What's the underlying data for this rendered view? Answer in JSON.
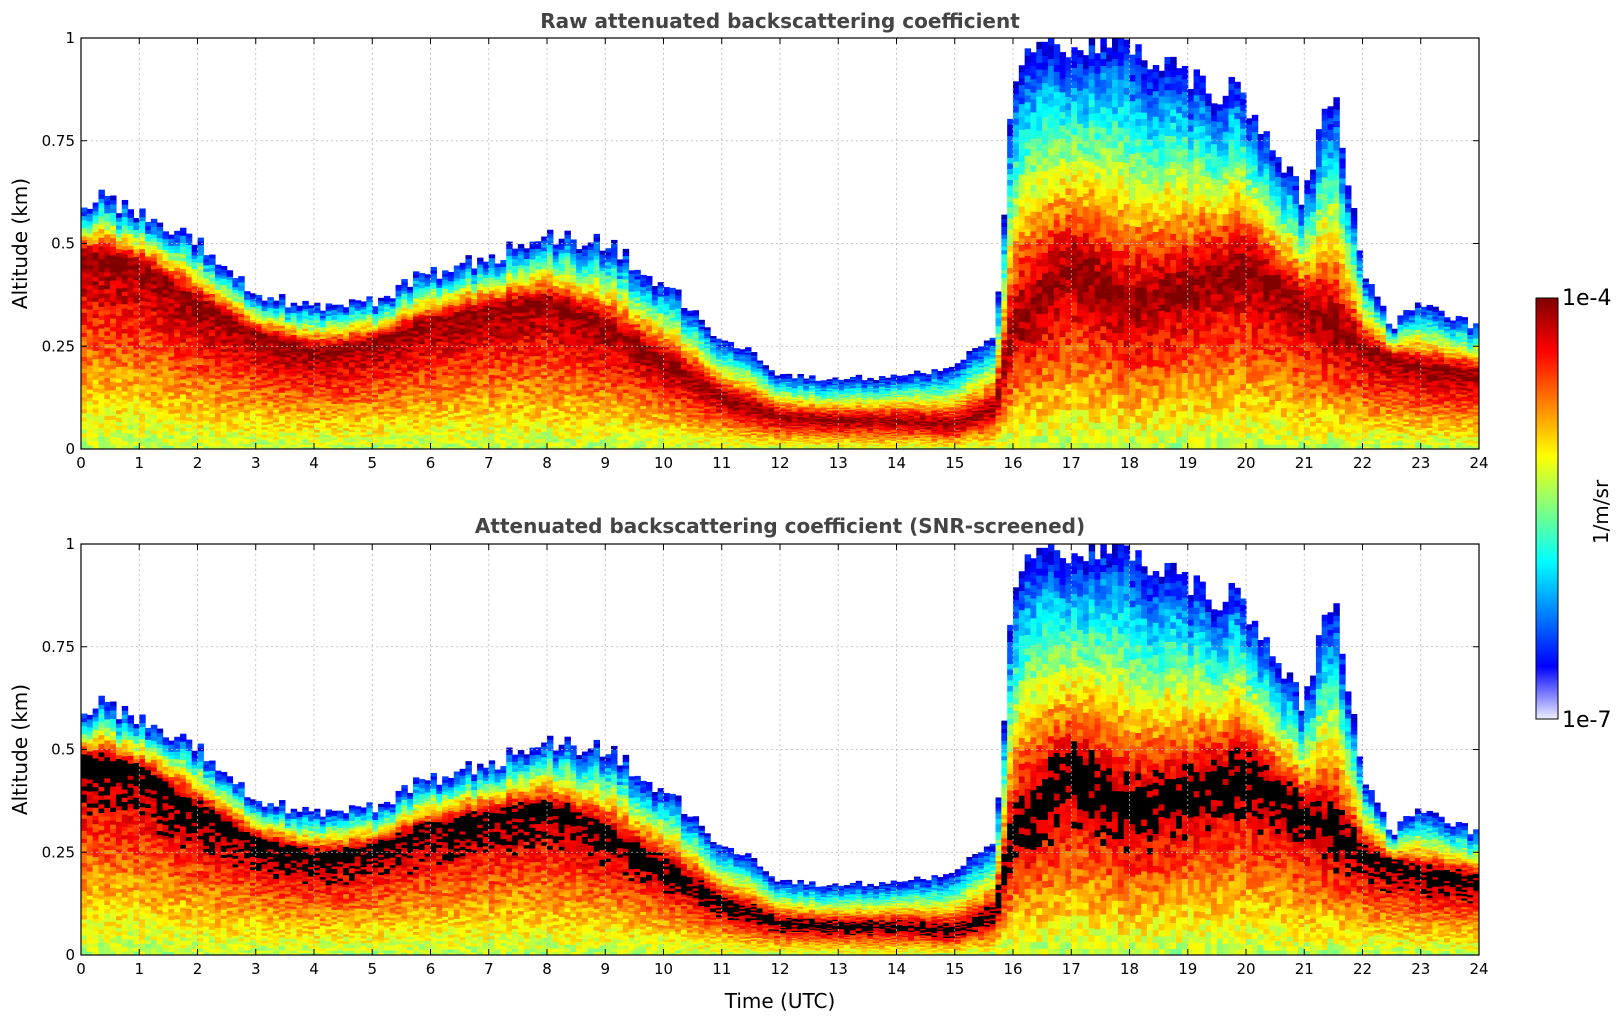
{
  "figure": {
    "colormap": [
      "#000080",
      "#0000ff",
      "#0080ff",
      "#00ffff",
      "#80ff80",
      "#ffff00",
      "#ff8000",
      "#ff0000",
      "#800000"
    ],
    "mask_color": "#000000"
  },
  "colorbar": {
    "label": "1/m/sr",
    "min_label": "1e-7",
    "max_label": "1e-4",
    "scale": "log",
    "range": [
      1e-07,
      0.0001
    ],
    "colors": [
      "#eeeeff",
      "#0000ff",
      "#0080ff",
      "#00ffff",
      "#80ff80",
      "#ffff00",
      "#ff8000",
      "#ff0000",
      "#800000"
    ]
  },
  "chart_data": [
    {
      "type": "heatmap",
      "id": "raw",
      "title": "Raw attenuated backscattering coefficient",
      "xlabel": "",
      "ylabel": "Altitude (km)",
      "xlim": [
        0,
        24
      ],
      "ylim": [
        0,
        1
      ],
      "xticks": [
        "0",
        "1",
        "2",
        "3",
        "4",
        "5",
        "6",
        "7",
        "8",
        "9",
        "10",
        "11",
        "12",
        "13",
        "14",
        "15",
        "16",
        "17",
        "18",
        "19",
        "20",
        "21",
        "22",
        "23",
        "24"
      ],
      "yticks": [
        "0",
        "0.25",
        "0.5",
        "0.75",
        "1"
      ],
      "grid": true,
      "snr_mask": false,
      "layer_top_km": [
        [
          0,
          0.62
        ],
        [
          1,
          0.58
        ],
        [
          2,
          0.5
        ],
        [
          3,
          0.38
        ],
        [
          4,
          0.34
        ],
        [
          5,
          0.36
        ],
        [
          6,
          0.43
        ],
        [
          7,
          0.46
        ],
        [
          8,
          0.52
        ],
        [
          9,
          0.5
        ],
        [
          10,
          0.4
        ],
        [
          10.5,
          0.34
        ],
        [
          11,
          0.26
        ],
        [
          11.5,
          0.24
        ],
        [
          12,
          0.18
        ],
        [
          13,
          0.17
        ],
        [
          14,
          0.18
        ],
        [
          15,
          0.2
        ],
        [
          15.7,
          0.28
        ],
        [
          16,
          0.9
        ],
        [
          16.5,
          1.0
        ],
        [
          18,
          1.0
        ],
        [
          19,
          0.9
        ],
        [
          20,
          0.85
        ],
        [
          21,
          0.6
        ],
        [
          21.5,
          0.9
        ],
        [
          22,
          0.45
        ],
        [
          22.5,
          0.3
        ],
        [
          23,
          0.36
        ],
        [
          24,
          0.3
        ]
      ],
      "layer_peak_km": [
        [
          0,
          0.48
        ],
        [
          1,
          0.45
        ],
        [
          2,
          0.36
        ],
        [
          3,
          0.28
        ],
        [
          4,
          0.24
        ],
        [
          5,
          0.26
        ],
        [
          6,
          0.31
        ],
        [
          7,
          0.34
        ],
        [
          8,
          0.36
        ],
        [
          9,
          0.3
        ],
        [
          10,
          0.22
        ],
        [
          11,
          0.13
        ],
        [
          12,
          0.08
        ],
        [
          13,
          0.07
        ],
        [
          14,
          0.07
        ],
        [
          15,
          0.06
        ],
        [
          15.7,
          0.1
        ],
        [
          16,
          0.3
        ],
        [
          17,
          0.45
        ],
        [
          18,
          0.35
        ],
        [
          19,
          0.4
        ],
        [
          20,
          0.45
        ],
        [
          21,
          0.35
        ],
        [
          22,
          0.25
        ],
        [
          23,
          0.2
        ],
        [
          24,
          0.18
        ]
      ]
    },
    {
      "type": "heatmap",
      "id": "screened",
      "title": "Attenuated backscattering coefficient (SNR-screened)",
      "xlabel": "Time (UTC)",
      "ylabel": "Altitude (km)",
      "xlim": [
        0,
        24
      ],
      "ylim": [
        0,
        1
      ],
      "xticks": [
        "0",
        "1",
        "2",
        "3",
        "4",
        "5",
        "6",
        "7",
        "8",
        "9",
        "10",
        "11",
        "12",
        "13",
        "14",
        "15",
        "16",
        "17",
        "18",
        "19",
        "20",
        "21",
        "22",
        "23",
        "24"
      ],
      "yticks": [
        "0",
        "0.25",
        "0.5",
        "0.75",
        "1"
      ],
      "grid": true,
      "snr_mask": true,
      "layer_top_km": [
        [
          0,
          0.62
        ],
        [
          1,
          0.58
        ],
        [
          2,
          0.5
        ],
        [
          3,
          0.38
        ],
        [
          4,
          0.34
        ],
        [
          5,
          0.36
        ],
        [
          6,
          0.43
        ],
        [
          7,
          0.46
        ],
        [
          8,
          0.52
        ],
        [
          9,
          0.5
        ],
        [
          10,
          0.4
        ],
        [
          10.5,
          0.34
        ],
        [
          11,
          0.26
        ],
        [
          11.5,
          0.24
        ],
        [
          12,
          0.18
        ],
        [
          13,
          0.17
        ],
        [
          14,
          0.18
        ],
        [
          15,
          0.2
        ],
        [
          15.7,
          0.28
        ],
        [
          16,
          0.9
        ],
        [
          16.5,
          1.0
        ],
        [
          18,
          1.0
        ],
        [
          19,
          0.9
        ],
        [
          20,
          0.85
        ],
        [
          21,
          0.6
        ],
        [
          21.5,
          0.9
        ],
        [
          22,
          0.45
        ],
        [
          22.5,
          0.3
        ],
        [
          23,
          0.36
        ],
        [
          24,
          0.3
        ]
      ],
      "layer_peak_km": [
        [
          0,
          0.48
        ],
        [
          1,
          0.45
        ],
        [
          2,
          0.36
        ],
        [
          3,
          0.28
        ],
        [
          4,
          0.24
        ],
        [
          5,
          0.26
        ],
        [
          6,
          0.31
        ],
        [
          7,
          0.34
        ],
        [
          8,
          0.36
        ],
        [
          9,
          0.3
        ],
        [
          10,
          0.22
        ],
        [
          11,
          0.13
        ],
        [
          12,
          0.08
        ],
        [
          13,
          0.07
        ],
        [
          14,
          0.07
        ],
        [
          15,
          0.06
        ],
        [
          15.7,
          0.1
        ],
        [
          16,
          0.3
        ],
        [
          17,
          0.45
        ],
        [
          18,
          0.35
        ],
        [
          19,
          0.4
        ],
        [
          20,
          0.45
        ],
        [
          21,
          0.35
        ],
        [
          22,
          0.25
        ],
        [
          23,
          0.2
        ],
        [
          24,
          0.18
        ]
      ]
    }
  ]
}
